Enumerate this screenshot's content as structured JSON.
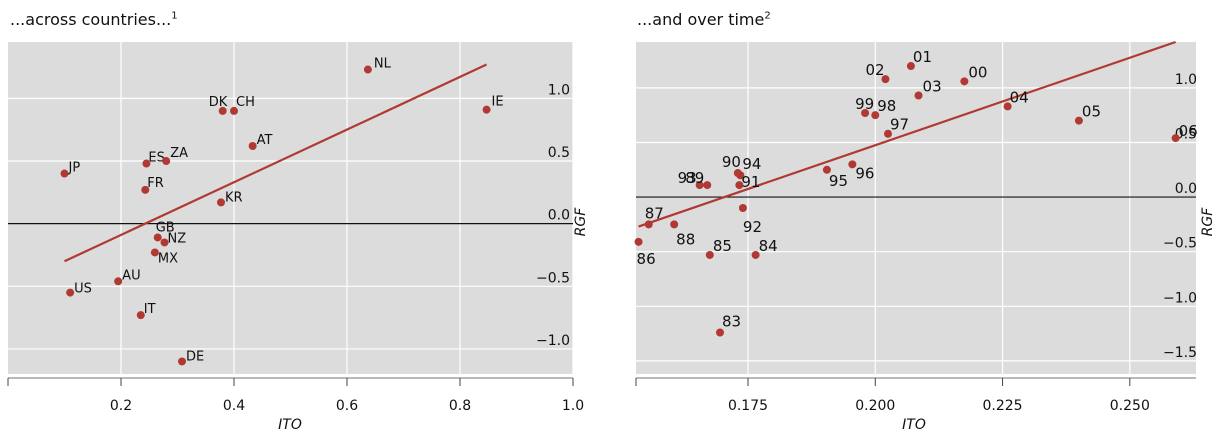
{
  "chart_data": [
    {
      "type": "scatter",
      "title": "...across countries...",
      "title_note": "1",
      "xlabel": "ITO",
      "ylabel": "RGF",
      "xlim": [
        0.0,
        1.0
      ],
      "ylim": [
        -1.2,
        1.45
      ],
      "x_ticks": [
        0.2,
        0.4,
        0.6,
        0.8,
        1.0
      ],
      "x_tick_labels": [
        "0.2",
        "0.4",
        "0.6",
        "0.8",
        "1.0"
      ],
      "y_ticks": [
        -1.0,
        -0.5,
        0.0,
        0.5,
        1.0
      ],
      "y_tick_labels": [
        "−1.0",
        "−0.5",
        "0.0",
        "0.5",
        "1.0"
      ],
      "grid": true,
      "zero_line": true,
      "point_color": "#b03a33",
      "line_color": "#b03a33",
      "background": "#dcdcdc",
      "points": [
        {
          "label": "NL",
          "x": 0.637,
          "y": 1.23
        },
        {
          "label": "IE",
          "x": 0.847,
          "y": 0.91
        },
        {
          "label": "DK",
          "x": 0.38,
          "y": 0.9
        },
        {
          "label": "CH",
          "x": 0.4,
          "y": 0.9
        },
        {
          "label": "AT",
          "x": 0.433,
          "y": 0.62
        },
        {
          "label": "ES",
          "x": 0.245,
          "y": 0.48
        },
        {
          "label": "ZA",
          "x": 0.28,
          "y": 0.5
        },
        {
          "label": "JP",
          "x": 0.1,
          "y": 0.4
        },
        {
          "label": "FR",
          "x": 0.243,
          "y": 0.27
        },
        {
          "label": "KR",
          "x": 0.377,
          "y": 0.17
        },
        {
          "label": "GB",
          "x": 0.265,
          "y": -0.11
        },
        {
          "label": "NZ",
          "x": 0.277,
          "y": -0.15
        },
        {
          "label": "MX",
          "x": 0.26,
          "y": -0.23
        },
        {
          "label": "AU",
          "x": 0.195,
          "y": -0.46
        },
        {
          "label": "US",
          "x": 0.11,
          "y": -0.55
        },
        {
          "label": "IT",
          "x": 0.235,
          "y": -0.73
        },
        {
          "label": "DE",
          "x": 0.308,
          "y": -1.1
        }
      ],
      "fit_line": {
        "x": [
          0.1,
          0.847
        ],
        "y": [
          -0.3,
          1.27
        ]
      }
    },
    {
      "type": "scatter",
      "title": "...and over time",
      "title_note": "2",
      "xlabel": "ITO",
      "ylabel": "RGF",
      "xlim": [
        0.153,
        0.263
      ],
      "ylim": [
        -1.62,
        1.42
      ],
      "x_ticks": [
        0.175,
        0.2,
        0.225,
        0.25
      ],
      "x_tick_labels": [
        "0.175",
        "0.200",
        "0.225",
        "0.250"
      ],
      "y_ticks": [
        -1.5,
        -1.0,
        -0.5,
        0.0,
        0.5,
        1.0
      ],
      "y_tick_labels": [
        "−1.5",
        "−1.0",
        "−0.5",
        "0.0",
        "0.5",
        "1.0"
      ],
      "grid": true,
      "zero_line": true,
      "point_color": "#b03a33",
      "line_color": "#b03a33",
      "background": "#dcdcdc",
      "points": [
        {
          "label": "01",
          "x": 0.207,
          "y": 1.2
        },
        {
          "label": "02",
          "x": 0.202,
          "y": 1.08
        },
        {
          "label": "00",
          "x": 0.2175,
          "y": 1.06
        },
        {
          "label": "03",
          "x": 0.2085,
          "y": 0.93
        },
        {
          "label": "99",
          "x": 0.198,
          "y": 0.77
        },
        {
          "label": "98",
          "x": 0.2,
          "y": 0.75
        },
        {
          "label": "04",
          "x": 0.226,
          "y": 0.83
        },
        {
          "label": "05",
          "x": 0.24,
          "y": 0.7
        },
        {
          "label": "06",
          "x": 0.259,
          "y": 0.54
        },
        {
          "label": "97",
          "x": 0.2025,
          "y": 0.58
        },
        {
          "label": "90",
          "x": 0.173,
          "y": 0.22
        },
        {
          "label": "94",
          "x": 0.1735,
          "y": 0.2
        },
        {
          "label": "96",
          "x": 0.1955,
          "y": 0.3
        },
        {
          "label": "95",
          "x": 0.1905,
          "y": 0.25
        },
        {
          "label": "93",
          "x": 0.1655,
          "y": 0.11
        },
        {
          "label": "89",
          "x": 0.167,
          "y": 0.11
        },
        {
          "label": "91",
          "x": 0.1733,
          "y": 0.11
        },
        {
          "label": "92",
          "x": 0.174,
          "y": -0.1
        },
        {
          "label": "87",
          "x": 0.1555,
          "y": -0.25
        },
        {
          "label": "88",
          "x": 0.1605,
          "y": -0.25
        },
        {
          "label": "86",
          "x": 0.1535,
          "y": -0.41
        },
        {
          "label": "85",
          "x": 0.1675,
          "y": -0.53
        },
        {
          "label": "84",
          "x": 0.1765,
          "y": -0.53
        },
        {
          "label": "83",
          "x": 0.1695,
          "y": -1.24
        }
      ],
      "fit_line": {
        "x": [
          0.1535,
          0.259
        ],
        "y": [
          -0.27,
          1.42
        ]
      }
    }
  ]
}
